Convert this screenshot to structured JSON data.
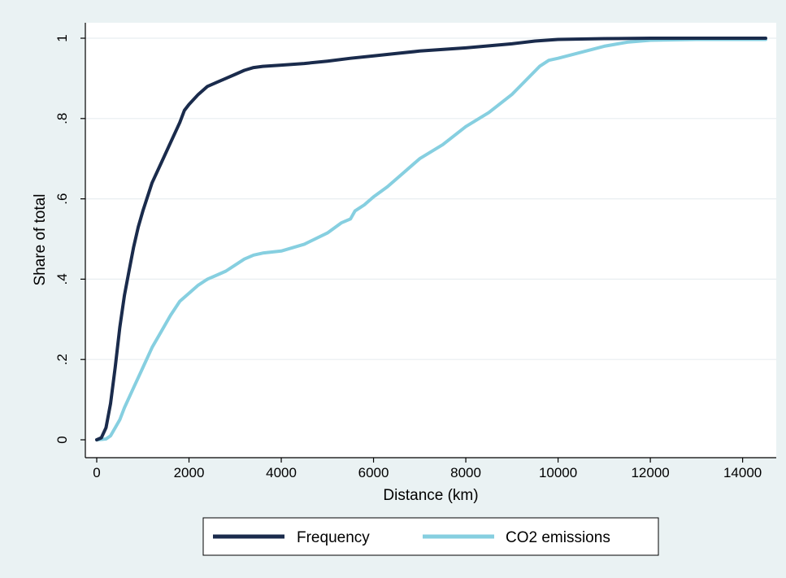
{
  "chart_data": {
    "type": "line",
    "title": "",
    "xlabel": "Distance (km)",
    "ylabel": "Share of total",
    "xlim": [
      0,
      14500
    ],
    "ylim": [
      0,
      1
    ],
    "x_ticks": [
      0,
      2000,
      4000,
      6000,
      8000,
      10000,
      12000,
      14000
    ],
    "x_tick_labels": [
      "0",
      "2000",
      "4000",
      "6000",
      "8000",
      "10000",
      "12000",
      "14000"
    ],
    "y_ticks": [
      0,
      0.2,
      0.4,
      0.6,
      0.8,
      1
    ],
    "y_tick_labels": [
      "0",
      ".2",
      ".4",
      ".6",
      ".8",
      "1"
    ],
    "grid": "horizontal",
    "legend_position": "bottom",
    "colors": {
      "background": "#eaf2f3",
      "plot_area": "#ffffff",
      "grid": "#e8eef0",
      "axis": "#000000"
    },
    "series": [
      {
        "name": "Frequency",
        "color": "#1a2b4c",
        "x": [
          0,
          100,
          200,
          300,
          400,
          500,
          600,
          700,
          800,
          900,
          1000,
          1200,
          1400,
          1600,
          1800,
          1900,
          2000,
          2200,
          2400,
          2600,
          2800,
          3000,
          3200,
          3400,
          3600,
          4000,
          4500,
          5000,
          5500,
          6000,
          6500,
          7000,
          8000,
          9000,
          9500,
          10000,
          11000,
          12000,
          13000,
          14500
        ],
        "y": [
          0,
          0.005,
          0.03,
          0.09,
          0.18,
          0.28,
          0.36,
          0.42,
          0.48,
          0.53,
          0.57,
          0.64,
          0.69,
          0.74,
          0.79,
          0.82,
          0.835,
          0.86,
          0.88,
          0.89,
          0.9,
          0.91,
          0.92,
          0.927,
          0.93,
          0.933,
          0.937,
          0.943,
          0.95,
          0.956,
          0.962,
          0.968,
          0.976,
          0.986,
          0.993,
          0.997,
          0.999,
          1.0,
          1.0,
          1.0
        ]
      },
      {
        "name": "CO2 emissions",
        "color": "#86cfe0",
        "x": [
          0,
          200,
          300,
          400,
          500,
          600,
          800,
          1000,
          1200,
          1400,
          1600,
          1800,
          2000,
          2200,
          2400,
          2600,
          2800,
          3000,
          3200,
          3400,
          3600,
          4000,
          4500,
          5000,
          5300,
          5500,
          5600,
          5800,
          6000,
          6300,
          6600,
          7000,
          7500,
          8000,
          8500,
          9000,
          9300,
          9600,
          9800,
          10000,
          10500,
          11000,
          11500,
          12000,
          13000,
          14500
        ],
        "y": [
          0,
          0.002,
          0.01,
          0.03,
          0.05,
          0.08,
          0.13,
          0.18,
          0.23,
          0.27,
          0.31,
          0.345,
          0.365,
          0.385,
          0.4,
          0.41,
          0.42,
          0.435,
          0.45,
          0.46,
          0.465,
          0.47,
          0.487,
          0.515,
          0.54,
          0.55,
          0.57,
          0.585,
          0.605,
          0.63,
          0.66,
          0.7,
          0.735,
          0.78,
          0.815,
          0.86,
          0.895,
          0.93,
          0.945,
          0.95,
          0.965,
          0.98,
          0.99,
          0.995,
          0.997,
          0.997
        ]
      }
    ]
  }
}
